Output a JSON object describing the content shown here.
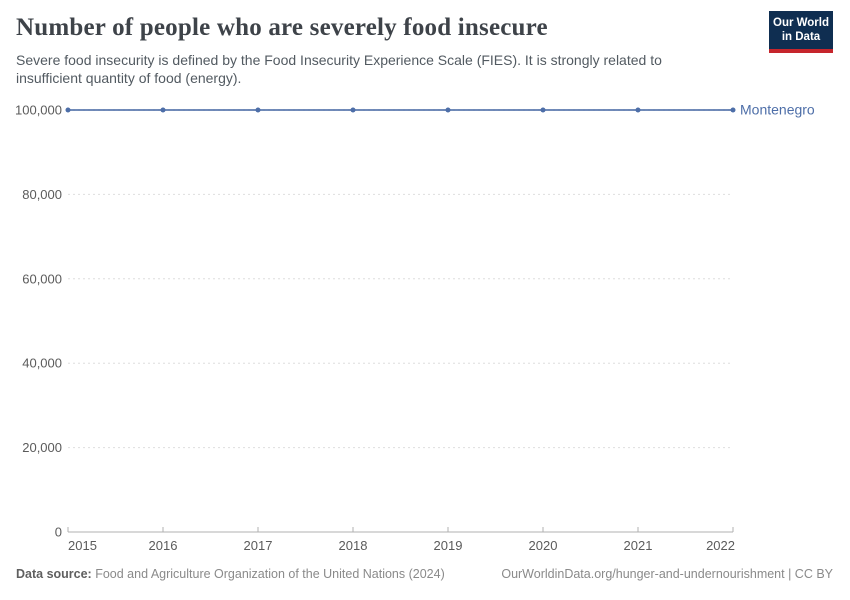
{
  "header": {
    "title": "Number of people who are severely food insecure",
    "subtitle": "Severe food insecurity is defined by the Food Insecurity Experience Scale (FIES). It is strongly related to insufficient quantity of food (energy).",
    "logo": {
      "line1": "Our World",
      "line2": "in Data",
      "bg_color": "#0f2e51",
      "accent_color": "#c6252c"
    }
  },
  "chart_data": {
    "type": "line",
    "title": "Number of people who are severely food insecure",
    "x": [
      2015,
      2016,
      2017,
      2018,
      2019,
      2020,
      2021,
      2022
    ],
    "series": [
      {
        "name": "Montenegro",
        "color": "#4d6ea8",
        "values": [
          100000,
          100000,
          100000,
          100000,
          100000,
          100000,
          100000,
          100000
        ]
      }
    ],
    "xlabel": "",
    "ylabel": "",
    "ylim": [
      0,
      100000
    ],
    "yticks": [
      0,
      20000,
      40000,
      60000,
      80000,
      100000
    ],
    "grid": "horizontal-dashed",
    "legend_position": "end-of-line"
  },
  "footer": {
    "source_label": "Data source:",
    "source_text": "Food and Agriculture Organization of the United Nations (2024)",
    "credit": "OurWorldinData.org/hunger-and-undernourishment | CC BY"
  }
}
